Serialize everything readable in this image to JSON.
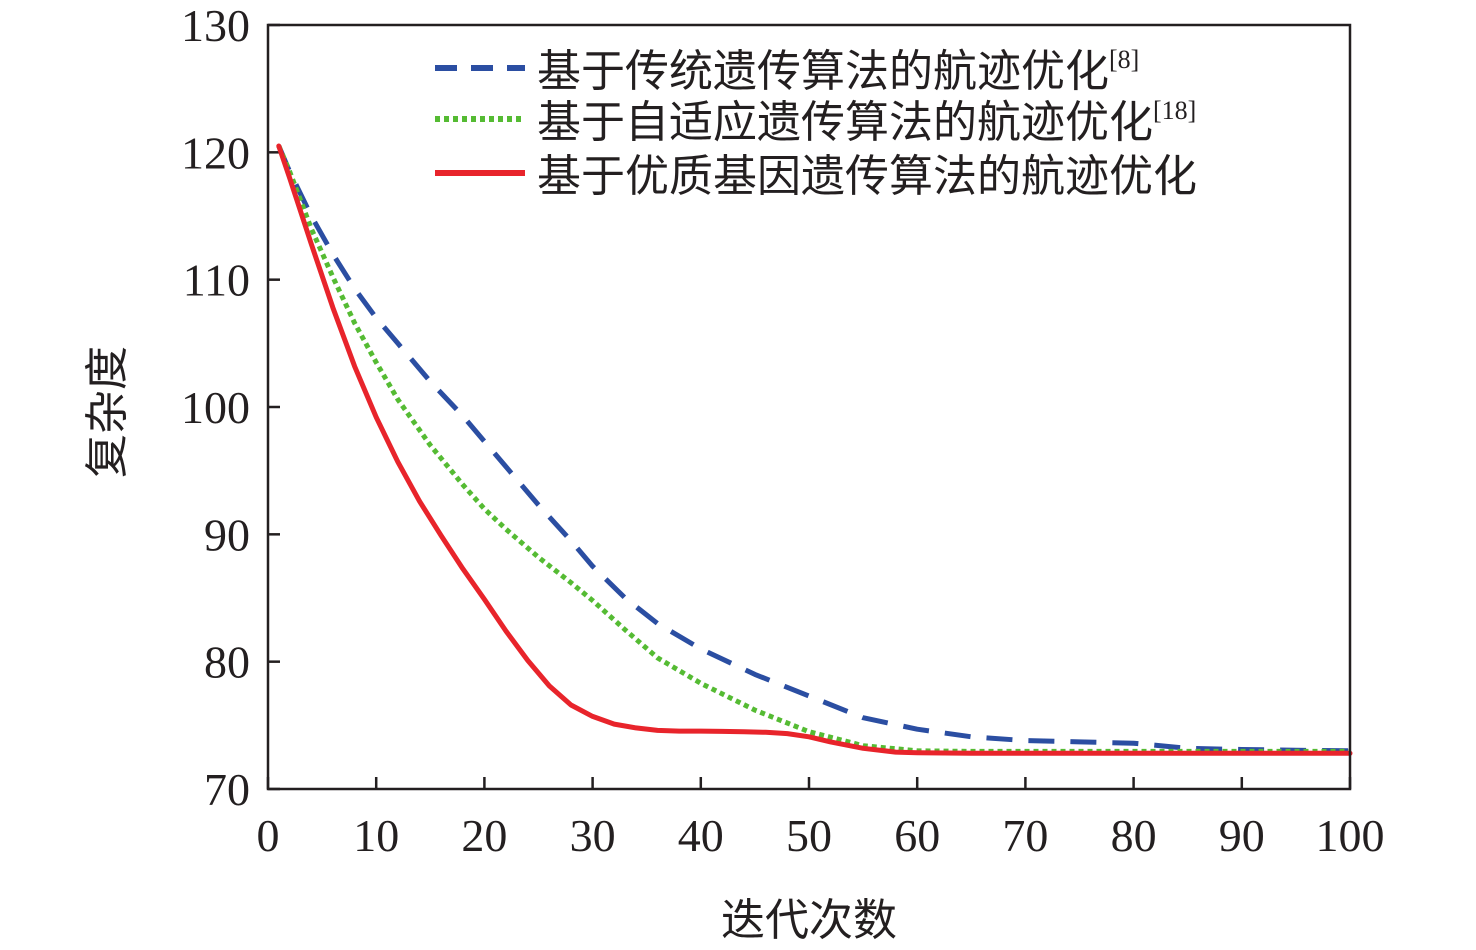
{
  "chart_data": {
    "type": "line",
    "title": "",
    "xlabel": "迭代次数",
    "ylabel": "复杂度",
    "xlim": [
      0,
      100
    ],
    "ylim": [
      70,
      130
    ],
    "xticks": [
      0,
      10,
      20,
      30,
      40,
      50,
      60,
      70,
      80,
      90,
      100
    ],
    "yticks": [
      70,
      80,
      90,
      100,
      110,
      120,
      130
    ],
    "grid": false,
    "legend_position": "top-right",
    "series": [
      {
        "name": "基于传统遗传算法的航迹优化",
        "ref": "[8]",
        "color": "#2b4ea2",
        "style": "dashed",
        "x": [
          1,
          2,
          4,
          6,
          8,
          10,
          12,
          15,
          18,
          20,
          22,
          25,
          28,
          30,
          33,
          36,
          40,
          45,
          50,
          55,
          60,
          65,
          70,
          75,
          80,
          85,
          90,
          95,
          100
        ],
        "y": [
          120.5,
          118.5,
          115,
          112,
          109.3,
          107,
          105,
          102,
          99.3,
          97.3,
          95.3,
          92.3,
          89.5,
          87.5,
          85,
          83,
          81,
          79,
          77.3,
          75.6,
          74.7,
          74.1,
          73.8,
          73.7,
          73.6,
          73.2,
          73.1,
          73.05,
          73.0
        ]
      },
      {
        "name": "基于自适应遗传算法的航迹优化",
        "ref": "[18]",
        "color": "#55bb33",
        "style": "dotted",
        "x": [
          1,
          2,
          4,
          6,
          8,
          10,
          12,
          15,
          18,
          20,
          22,
          25,
          28,
          30,
          33,
          36,
          40,
          45,
          50,
          55,
          60,
          65,
          70,
          80,
          90,
          100
        ],
        "y": [
          120.5,
          118.5,
          114,
          110.2,
          106.6,
          103.5,
          100.6,
          97,
          93.9,
          92,
          90.4,
          88.2,
          86.2,
          84.8,
          82.5,
          80.3,
          78.3,
          76.2,
          74.5,
          73.4,
          73.0,
          72.95,
          72.95,
          72.95,
          72.95,
          72.95
        ]
      },
      {
        "name": "基于优质基因遗传算法的航迹优化",
        "ref": "",
        "color": "#e8242b",
        "style": "solid",
        "x": [
          1,
          2,
          4,
          6,
          8,
          10,
          12,
          14,
          16,
          18,
          20,
          22,
          24,
          26,
          28,
          30,
          32,
          34,
          36,
          38,
          40,
          42,
          44,
          46,
          48,
          50,
          52,
          55,
          58,
          60,
          65,
          70,
          80,
          90,
          100
        ],
        "y": [
          120.5,
          118,
          112.8,
          107.8,
          103.2,
          99.2,
          95.7,
          92.6,
          89.9,
          87.3,
          84.9,
          82.4,
          80.1,
          78.1,
          76.6,
          75.7,
          75.1,
          74.8,
          74.6,
          74.55,
          74.55,
          74.52,
          74.5,
          74.45,
          74.35,
          74.1,
          73.7,
          73.2,
          72.9,
          72.85,
          72.8,
          72.8,
          72.8,
          72.8,
          72.8
        ]
      }
    ]
  }
}
